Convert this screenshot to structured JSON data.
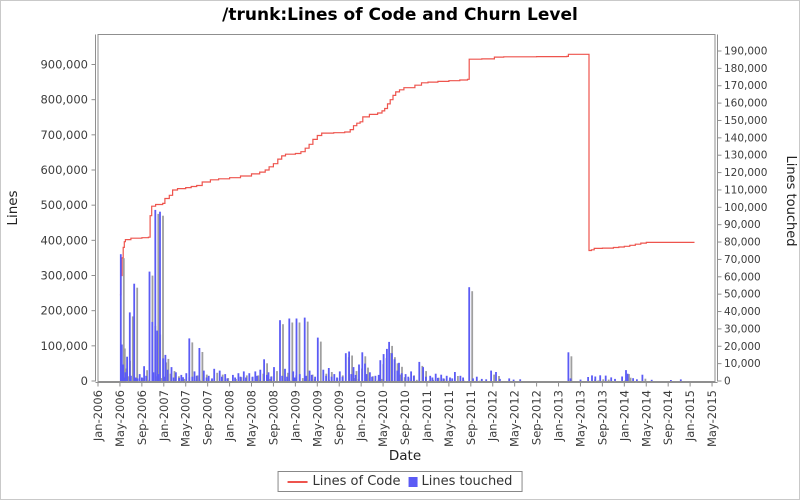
{
  "chart_data": {
    "type": "line",
    "secondary_type": "bar",
    "title": "/trunk:Lines of Code and Churn Level",
    "xlabel": "Date",
    "ylabel_left": "Lines",
    "ylabel_right": "Lines touched",
    "x_unit": "months since Jan-2006",
    "x_tick_labels": [
      "Jan-2006",
      "May-2006",
      "Sep-2006",
      "Jan-2007",
      "May-2007",
      "Sep-2007",
      "Jan-2008",
      "May-2008",
      "Sep-2008",
      "Jan-2009",
      "May-2009",
      "Sep-2009",
      "Jan-2010",
      "May-2010",
      "Sep-2010",
      "Jan-2011",
      "May-2011",
      "Sep-2011",
      "Jan-2012",
      "May-2012",
      "Sep-2012",
      "Jan-2013",
      "May-2013",
      "Sep-2013",
      "Jan-2014",
      "May-2014",
      "Sep-2014",
      "Jan-2015",
      "May-2015"
    ],
    "x_tick_step_months": 4,
    "left_axis": {
      "min": 0,
      "max": 900000,
      "tick_step": 100000,
      "tick_labels": [
        "0",
        "100,000",
        "200,000",
        "300,000",
        "400,000",
        "500,000",
        "600,000",
        "700,000",
        "800,000",
        "900,000"
      ]
    },
    "right_axis": {
      "min": 0,
      "max": 190000,
      "tick_step": 10000,
      "tick_labels": [
        "0",
        "10,000",
        "20,000",
        "30,000",
        "40,000",
        "50,000",
        "60,000",
        "70,000",
        "80,000",
        "90,000",
        "100,000",
        "110,000",
        "120,000",
        "130,000",
        "140,000",
        "150,000",
        "160,000",
        "170,000",
        "180,000",
        "190,000"
      ]
    },
    "series": [
      {
        "name": "Lines of Code",
        "type": "line",
        "axis": "left",
        "color": "#ee544d",
        "points": [
          [
            4.0,
            245000
          ],
          [
            4.2,
            300000
          ],
          [
            4.4,
            350000
          ],
          [
            4.6,
            380000
          ],
          [
            4.8,
            396000
          ],
          [
            5.0,
            402000
          ],
          [
            6.0,
            406000
          ],
          [
            8.0,
            407500
          ],
          [
            9.2,
            409000
          ],
          [
            9.5,
            470000
          ],
          [
            9.8,
            497000
          ],
          [
            10.5,
            502000
          ],
          [
            11.8,
            505000
          ],
          [
            12.2,
            519000
          ],
          [
            13.0,
            528000
          ],
          [
            13.6,
            543000
          ],
          [
            14.5,
            547000
          ],
          [
            16.0,
            550000
          ],
          [
            17.0,
            553000
          ],
          [
            18.0,
            556000
          ],
          [
            19.0,
            566000
          ],
          [
            20.5,
            572000
          ],
          [
            22.0,
            575000
          ],
          [
            24.0,
            578000
          ],
          [
            26.0,
            583000
          ],
          [
            28.0,
            589000
          ],
          [
            29.5,
            594000
          ],
          [
            30.5,
            600000
          ],
          [
            31.2,
            609000
          ],
          [
            32.0,
            618000
          ],
          [
            32.8,
            631000
          ],
          [
            33.5,
            640000
          ],
          [
            34.2,
            645000
          ],
          [
            36.0,
            647000
          ],
          [
            37.0,
            652000
          ],
          [
            37.8,
            662000
          ],
          [
            38.5,
            673000
          ],
          [
            39.2,
            687000
          ],
          [
            40.0,
            698000
          ],
          [
            40.8,
            705000
          ],
          [
            43.0,
            706000
          ],
          [
            45.0,
            708000
          ],
          [
            46.0,
            715000
          ],
          [
            46.6,
            726000
          ],
          [
            47.2,
            733000
          ],
          [
            47.8,
            737000
          ],
          [
            48.3,
            751000
          ],
          [
            49.5,
            758000
          ],
          [
            51.0,
            762000
          ],
          [
            51.8,
            768000
          ],
          [
            52.3,
            775000
          ],
          [
            52.8,
            788000
          ],
          [
            53.3,
            800000
          ],
          [
            53.8,
            812000
          ],
          [
            54.3,
            822000
          ],
          [
            55.0,
            828000
          ],
          [
            55.8,
            834000
          ],
          [
            57.8,
            841000
          ],
          [
            59.0,
            848000
          ],
          [
            60.2,
            850000
          ],
          [
            62.0,
            852000
          ],
          [
            64.0,
            854000
          ],
          [
            66.0,
            856000
          ],
          [
            67.4,
            858000
          ],
          [
            67.7,
            915000
          ],
          [
            70.0,
            916000
          ],
          [
            72.3,
            921000
          ],
          [
            74.0,
            922000
          ],
          [
            80.0,
            922500
          ],
          [
            85.5,
            923000
          ],
          [
            85.8,
            929000
          ],
          [
            89.5,
            929000
          ],
          [
            89.55,
            371000
          ],
          [
            90.0,
            373000
          ],
          [
            90.5,
            377000
          ],
          [
            92.0,
            378000
          ],
          [
            94.0,
            379500
          ],
          [
            95.0,
            381000
          ],
          [
            96.0,
            383000
          ],
          [
            97.0,
            386000
          ],
          [
            98.0,
            389000
          ],
          [
            99.0,
            392000
          ],
          [
            100.0,
            394000
          ],
          [
            108.8,
            394000
          ]
        ]
      },
      {
        "name": "Lines touched",
        "type": "bar",
        "axis": "right",
        "color": "#5b5bf5",
        "shadow_color": "#9f9f9f",
        "points": [
          [
            4.15,
            73000
          ],
          [
            4.35,
            21000
          ],
          [
            4.6,
            9500
          ],
          [
            4.8,
            2000
          ],
          [
            5.0,
            5000
          ],
          [
            5.3,
            14000
          ],
          [
            5.8,
            39500
          ],
          [
            6.0,
            3000
          ],
          [
            6.6,
            56000
          ],
          [
            6.9,
            2000
          ],
          [
            7.2,
            1500
          ],
          [
            7.6,
            4000
          ],
          [
            8.0,
            2000
          ],
          [
            8.4,
            8500
          ],
          [
            8.8,
            3000
          ],
          [
            9.4,
            63000
          ],
          [
            9.9,
            34000
          ],
          [
            10.1,
            5000
          ],
          [
            10.45,
            98500
          ],
          [
            10.8,
            29000
          ],
          [
            11.0,
            4000
          ],
          [
            11.3,
            97500
          ],
          [
            11.9,
            13000
          ],
          [
            12.0,
            2500
          ],
          [
            12.3,
            15000
          ],
          [
            12.7,
            6500
          ],
          [
            13.4,
            8000
          ],
          [
            13.8,
            2000
          ],
          [
            14.2,
            5000
          ],
          [
            14.8,
            1800
          ],
          [
            15.2,
            3500
          ],
          [
            15.5,
            2200
          ],
          [
            16.1,
            4500
          ],
          [
            16.65,
            24500
          ],
          [
            17.2,
            2500
          ],
          [
            17.6,
            5500
          ],
          [
            18.0,
            3000
          ],
          [
            18.5,
            19000
          ],
          [
            19.3,
            6000
          ],
          [
            19.8,
            2000
          ],
          [
            20.2,
            3000
          ],
          [
            20.8,
            1500
          ],
          [
            21.2,
            7000
          ],
          [
            22.2,
            6000
          ],
          [
            22.6,
            2500
          ],
          [
            23.2,
            4000
          ],
          [
            23.6,
            1500
          ],
          [
            24.6,
            3500
          ],
          [
            25.0,
            2000
          ],
          [
            25.6,
            4500
          ],
          [
            26.0,
            2500
          ],
          [
            26.6,
            5500
          ],
          [
            27.0,
            2000
          ],
          [
            27.6,
            4500
          ],
          [
            28.2,
            2500
          ],
          [
            28.7,
            5500
          ],
          [
            29.0,
            3000
          ],
          [
            29.6,
            6500
          ],
          [
            30.3,
            12500
          ],
          [
            30.8,
            3500
          ],
          [
            31.1,
            5000
          ],
          [
            31.6,
            2500
          ],
          [
            32.1,
            8000
          ],
          [
            33.2,
            35000
          ],
          [
            33.6,
            3000
          ],
          [
            34.1,
            7000
          ],
          [
            34.5,
            2500
          ],
          [
            34.9,
            36000
          ],
          [
            35.6,
            5500
          ],
          [
            35.9,
            2000
          ],
          [
            36.2,
            36000
          ],
          [
            36.8,
            4000
          ],
          [
            37.7,
            36500
          ],
          [
            38.0,
            3000
          ],
          [
            38.6,
            6000
          ],
          [
            39.0,
            3500
          ],
          [
            39.6,
            2500
          ],
          [
            40.1,
            25000
          ],
          [
            41.1,
            6500
          ],
          [
            41.6,
            3000
          ],
          [
            42.1,
            7500
          ],
          [
            42.6,
            2500
          ],
          [
            43.1,
            4000
          ],
          [
            43.6,
            2000
          ],
          [
            44.1,
            5500
          ],
          [
            44.6,
            2500
          ],
          [
            45.2,
            16000
          ],
          [
            45.8,
            17000
          ],
          [
            46.2,
            4000
          ],
          [
            46.6,
            8000
          ],
          [
            47.0,
            3500
          ],
          [
            47.6,
            9500
          ],
          [
            48.2,
            16500
          ],
          [
            48.7,
            10000
          ],
          [
            49.0,
            4000
          ],
          [
            49.6,
            5000
          ],
          [
            50.0,
            2500
          ],
          [
            50.6,
            3000
          ],
          [
            51.2,
            3500
          ],
          [
            51.5,
            12000
          ],
          [
            52.1,
            15500
          ],
          [
            52.7,
            18500
          ],
          [
            53.1,
            22500
          ],
          [
            53.6,
            16000
          ],
          [
            54.1,
            12500
          ],
          [
            54.6,
            6000
          ],
          [
            54.9,
            10500
          ],
          [
            55.4,
            4500
          ],
          [
            56.1,
            4000
          ],
          [
            56.6,
            2500
          ],
          [
            57.1,
            5500
          ],
          [
            57.6,
            3000
          ],
          [
            58.6,
            11000
          ],
          [
            59.3,
            8000
          ],
          [
            59.8,
            2500
          ],
          [
            60.6,
            3000
          ],
          [
            61.0,
            2000
          ],
          [
            61.6,
            4200
          ],
          [
            62.0,
            1800
          ],
          [
            62.6,
            3600
          ],
          [
            63.0,
            1500
          ],
          [
            63.6,
            3000
          ],
          [
            64.2,
            2000
          ],
          [
            64.6,
            1500
          ],
          [
            65.1,
            5200
          ],
          [
            66.1,
            3000
          ],
          [
            66.6,
            2000
          ],
          [
            67.7,
            54000
          ],
          [
            68.4,
            1500
          ],
          [
            69.1,
            2500
          ],
          [
            70.0,
            1200
          ],
          [
            70.8,
            1000
          ],
          [
            71.7,
            6000
          ],
          [
            72.6,
            5200
          ],
          [
            73.3,
            1200
          ],
          [
            75.0,
            1500
          ],
          [
            75.8,
            800
          ],
          [
            77.0,
            1000
          ],
          [
            85.8,
            16500
          ],
          [
            86.2,
            1500
          ],
          [
            88.0,
            800
          ],
          [
            89.4,
            2300
          ],
          [
            90.1,
            3200
          ],
          [
            90.7,
            2600
          ],
          [
            91.6,
            3300
          ],
          [
            92.6,
            3100
          ],
          [
            93.6,
            2100
          ],
          [
            94.3,
            1200
          ],
          [
            95.6,
            2600
          ],
          [
            96.3,
            6300
          ],
          [
            96.6,
            4200
          ],
          [
            97.6,
            1600
          ],
          [
            98.3,
            1000
          ],
          [
            99.3,
            3600
          ],
          [
            101.0,
            700
          ],
          [
            104.5,
            600
          ],
          [
            106.3,
            900
          ]
        ]
      }
    ]
  },
  "legend": {
    "items": [
      {
        "label": "Lines of Code"
      },
      {
        "label": "Lines touched"
      }
    ]
  },
  "colors": {
    "line_series": "#ee544d",
    "bar_series": "#5b5bf5",
    "bar_shadow": "#9f9f9f",
    "axis": "#8f8f8f",
    "tick_text": "#3d3d3d",
    "title_text": "#000000",
    "outer_border": "#c9c9c9"
  }
}
